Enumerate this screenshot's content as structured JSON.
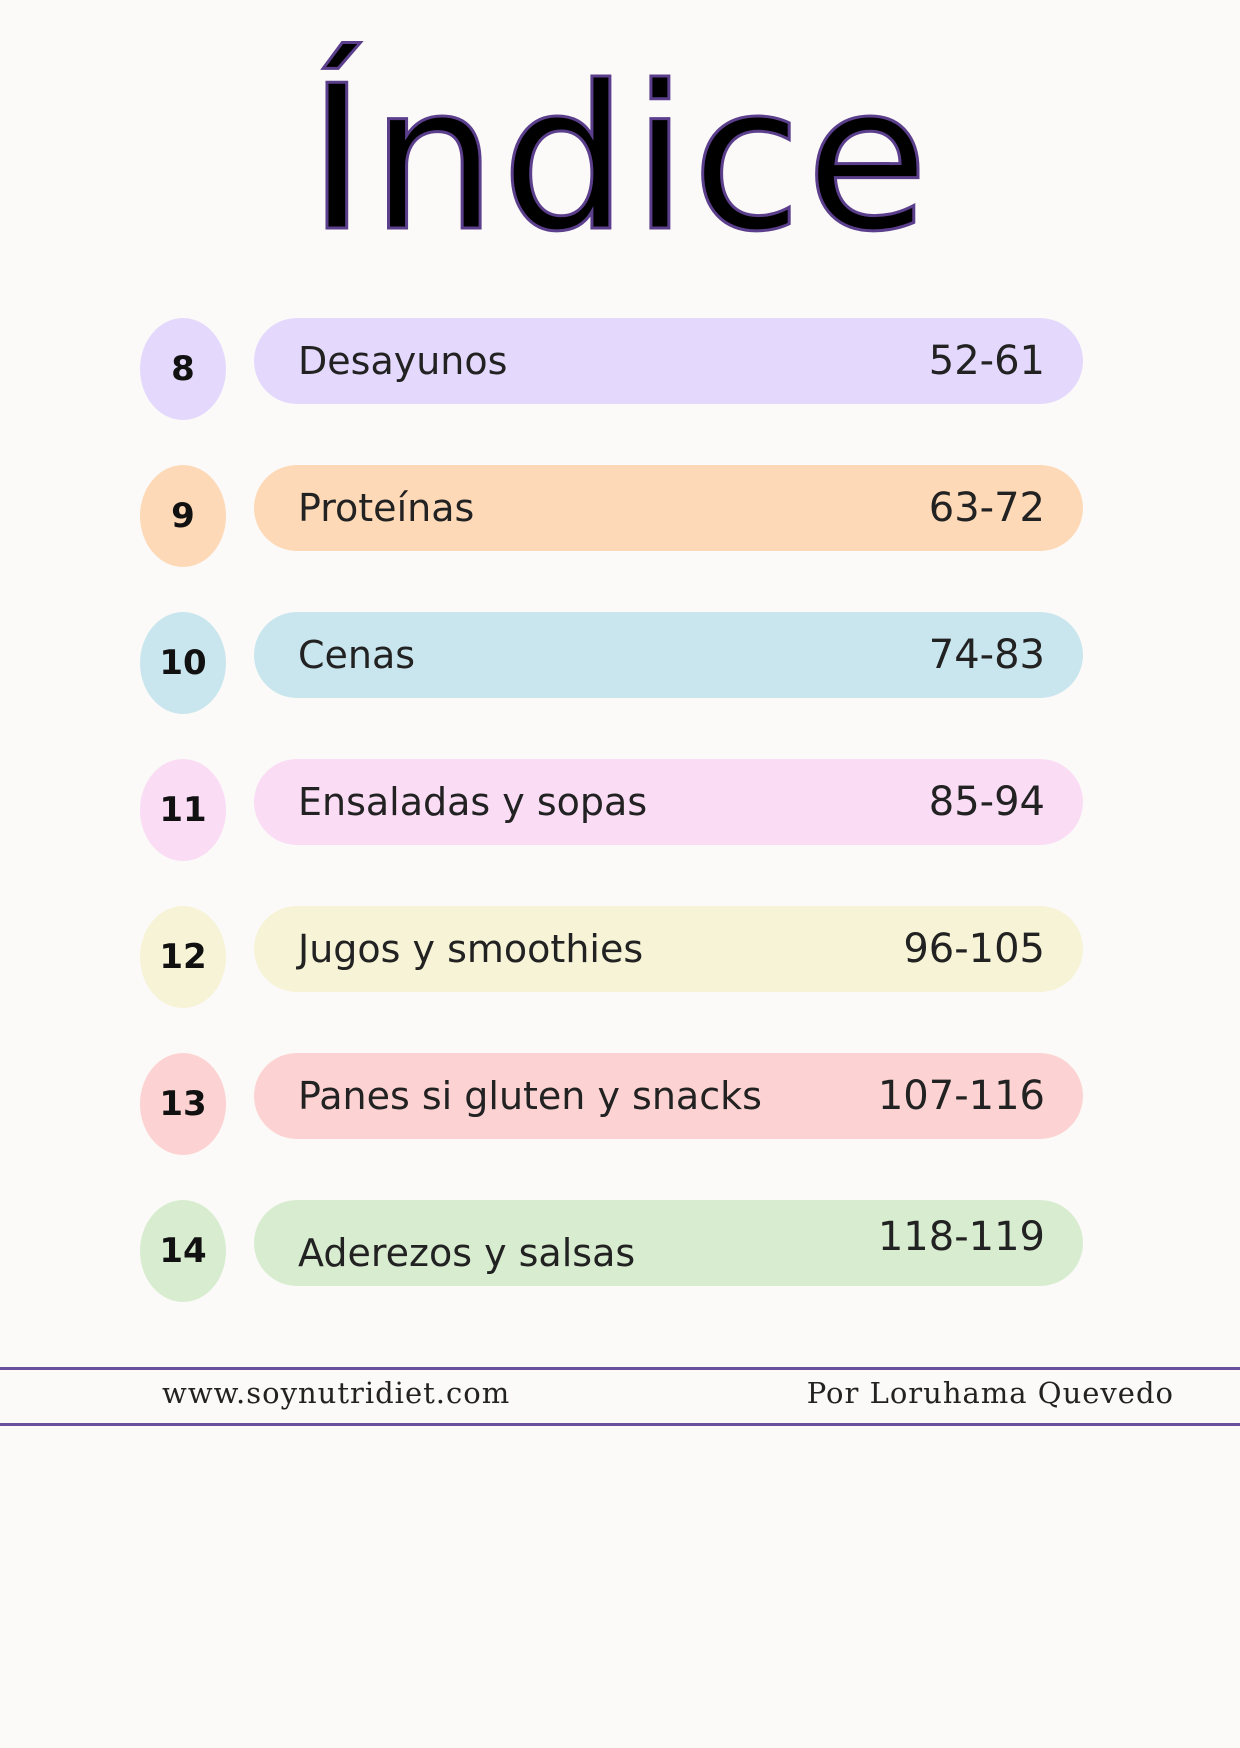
{
  "title": "Índice",
  "entries": [
    {
      "number": "8",
      "label": "Desayunos",
      "pages": "52-61",
      "bar_color": "#e4d9fd",
      "badge_color": "#e4d9fd"
    },
    {
      "number": "9",
      "label": "Proteínas",
      "pages": "63-72",
      "bar_color": "#fdd9b7",
      "badge_color": "#fdd9b7"
    },
    {
      "number": "10",
      "label": "Cenas",
      "pages": "74-83",
      "bar_color": "#c9e6ee",
      "badge_color": "#c9e6ee"
    },
    {
      "number": "11",
      "label": "Ensaladas y sopas",
      "pages": "85-94",
      "bar_color": "#fadcf5",
      "badge_color": "#fadcf5"
    },
    {
      "number": "12",
      "label": "Jugos y smoothies",
      "pages": "96-105",
      "bar_color": "#f6f3d6",
      "badge_color": "#f6f3d6"
    },
    {
      "number": "13",
      "label": "Panes si gluten y snacks",
      "pages": "107-116",
      "bar_color": "#fcd2d2",
      "badge_color": "#fcd2d2"
    },
    {
      "number": "14",
      "label": "Aderezos y salsas",
      "pages": "118-119",
      "bar_color": "#d8edd0",
      "badge_color": "#d8edd0"
    }
  ],
  "footer": {
    "website": "www.soynutridiet.com",
    "author": "Por Loruhama Quevedo",
    "line_color": "#6a4f9a"
  }
}
